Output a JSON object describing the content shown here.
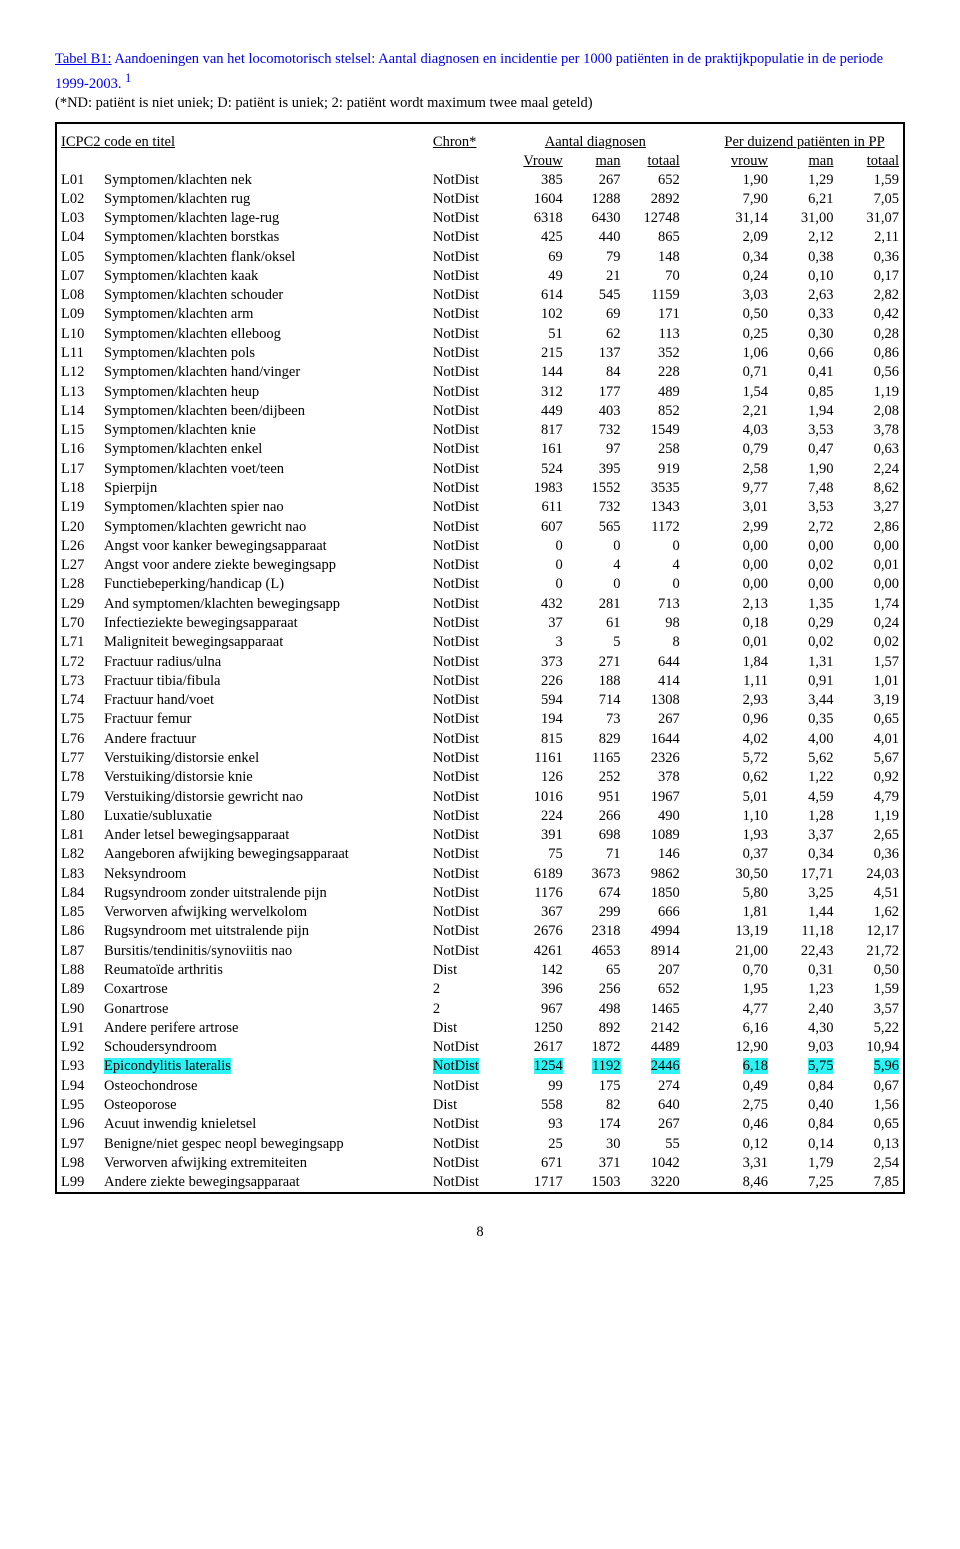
{
  "title_prefix": "Tabel B1:",
  "title_rest": " Aandoeningen van het locomotorisch stelsel: Aantal diagnosen en incidentie per 1000 patiënten in de praktijkpopulatie in de periode 1999-2003. ",
  "title_sup": "1",
  "subtitle": "(*ND: patiënt is niet uniek; D: patiënt is uniek; 2: patiënt wordt maximum twee maal geteld)",
  "headers": {
    "col1": "ICPC2 code en titel",
    "chron": "Chron*",
    "diag_group": "Aantal diagnosen",
    "pp_group": "Per duizend patiënten in PP",
    "vrouw_cap": "Vrouw",
    "man": "man",
    "totaal": "totaal",
    "vrouw": "vrouw"
  },
  "page_number": "8",
  "highlight_code": "L93",
  "rows": [
    {
      "code": "L01",
      "name": "Symptomen/klachten nek",
      "chron": "NotDist",
      "v": "385",
      "m": "267",
      "t": "652",
      "rv": "1,90",
      "rm": "1,29",
      "rt": "1,59"
    },
    {
      "code": "L02",
      "name": "Symptomen/klachten rug",
      "chron": "NotDist",
      "v": "1604",
      "m": "1288",
      "t": "2892",
      "rv": "7,90",
      "rm": "6,21",
      "rt": "7,05"
    },
    {
      "code": "L03",
      "name": "Symptomen/klachten lage-rug",
      "chron": "NotDist",
      "v": "6318",
      "m": "6430",
      "t": "12748",
      "rv": "31,14",
      "rm": "31,00",
      "rt": "31,07"
    },
    {
      "code": "L04",
      "name": "Symptomen/klachten borstkas",
      "chron": "NotDist",
      "v": "425",
      "m": "440",
      "t": "865",
      "rv": "2,09",
      "rm": "2,12",
      "rt": "2,11"
    },
    {
      "code": "L05",
      "name": "Symptomen/klachten flank/oksel",
      "chron": "NotDist",
      "v": "69",
      "m": "79",
      "t": "148",
      "rv": "0,34",
      "rm": "0,38",
      "rt": "0,36"
    },
    {
      "code": "L07",
      "name": "Symptomen/klachten kaak",
      "chron": "NotDist",
      "v": "49",
      "m": "21",
      "t": "70",
      "rv": "0,24",
      "rm": "0,10",
      "rt": "0,17"
    },
    {
      "code": "L08",
      "name": "Symptomen/klachten schouder",
      "chron": "NotDist",
      "v": "614",
      "m": "545",
      "t": "1159",
      "rv": "3,03",
      "rm": "2,63",
      "rt": "2,82"
    },
    {
      "code": "L09",
      "name": "Symptomen/klachten arm",
      "chron": "NotDist",
      "v": "102",
      "m": "69",
      "t": "171",
      "rv": "0,50",
      "rm": "0,33",
      "rt": "0,42"
    },
    {
      "code": "L10",
      "name": "Symptomen/klachten elleboog",
      "chron": "NotDist",
      "v": "51",
      "m": "62",
      "t": "113",
      "rv": "0,25",
      "rm": "0,30",
      "rt": "0,28"
    },
    {
      "code": "L11",
      "name": "Symptomen/klachten pols",
      "chron": "NotDist",
      "v": "215",
      "m": "137",
      "t": "352",
      "rv": "1,06",
      "rm": "0,66",
      "rt": "0,86"
    },
    {
      "code": "L12",
      "name": "Symptomen/klachten hand/vinger",
      "chron": "NotDist",
      "v": "144",
      "m": "84",
      "t": "228",
      "rv": "0,71",
      "rm": "0,41",
      "rt": "0,56"
    },
    {
      "code": "L13",
      "name": "Symptomen/klachten heup",
      "chron": "NotDist",
      "v": "312",
      "m": "177",
      "t": "489",
      "rv": "1,54",
      "rm": "0,85",
      "rt": "1,19"
    },
    {
      "code": "L14",
      "name": "Symptomen/klachten been/dijbeen",
      "chron": "NotDist",
      "v": "449",
      "m": "403",
      "t": "852",
      "rv": "2,21",
      "rm": "1,94",
      "rt": "2,08"
    },
    {
      "code": "L15",
      "name": "Symptomen/klachten knie",
      "chron": "NotDist",
      "v": "817",
      "m": "732",
      "t": "1549",
      "rv": "4,03",
      "rm": "3,53",
      "rt": "3,78"
    },
    {
      "code": "L16",
      "name": "Symptomen/klachten enkel",
      "chron": "NotDist",
      "v": "161",
      "m": "97",
      "t": "258",
      "rv": "0,79",
      "rm": "0,47",
      "rt": "0,63"
    },
    {
      "code": "L17",
      "name": "Symptomen/klachten voet/teen",
      "chron": "NotDist",
      "v": "524",
      "m": "395",
      "t": "919",
      "rv": "2,58",
      "rm": "1,90",
      "rt": "2,24"
    },
    {
      "code": "L18",
      "name": "Spierpijn",
      "chron": "NotDist",
      "v": "1983",
      "m": "1552",
      "t": "3535",
      "rv": "9,77",
      "rm": "7,48",
      "rt": "8,62"
    },
    {
      "code": "L19",
      "name": "Symptomen/klachten spier nao",
      "chron": "NotDist",
      "v": "611",
      "m": "732",
      "t": "1343",
      "rv": "3,01",
      "rm": "3,53",
      "rt": "3,27"
    },
    {
      "code": "L20",
      "name": "Symptomen/klachten gewricht nao",
      "chron": "NotDist",
      "v": "607",
      "m": "565",
      "t": "1172",
      "rv": "2,99",
      "rm": "2,72",
      "rt": "2,86"
    },
    {
      "code": "L26",
      "name": "Angst voor kanker bewegingsapparaat",
      "chron": "NotDist",
      "v": "0",
      "m": "0",
      "t": "0",
      "rv": "0,00",
      "rm": "0,00",
      "rt": "0,00"
    },
    {
      "code": "L27",
      "name": "Angst voor andere ziekte bewegingsapp",
      "chron": "NotDist",
      "v": "0",
      "m": "4",
      "t": "4",
      "rv": "0,00",
      "rm": "0,02",
      "rt": "0,01"
    },
    {
      "code": "L28",
      "name": "Functiebeperking/handicap (L)",
      "chron": "NotDist",
      "v": "0",
      "m": "0",
      "t": "0",
      "rv": "0,00",
      "rm": "0,00",
      "rt": "0,00"
    },
    {
      "code": "L29",
      "name": "And symptomen/klachten bewegingsapp",
      "chron": "NotDist",
      "v": "432",
      "m": "281",
      "t": "713",
      "rv": "2,13",
      "rm": "1,35",
      "rt": "1,74"
    },
    {
      "code": "L70",
      "name": "Infectieziekte bewegingsapparaat",
      "chron": "NotDist",
      "v": "37",
      "m": "61",
      "t": "98",
      "rv": "0,18",
      "rm": "0,29",
      "rt": "0,24"
    },
    {
      "code": "L71",
      "name": "Maligniteit bewegingsapparaat",
      "chron": "NotDist",
      "v": "3",
      "m": "5",
      "t": "8",
      "rv": "0,01",
      "rm": "0,02",
      "rt": "0,02"
    },
    {
      "code": "L72",
      "name": "Fractuur radius/ulna",
      "chron": "NotDist",
      "v": "373",
      "m": "271",
      "t": "644",
      "rv": "1,84",
      "rm": "1,31",
      "rt": "1,57"
    },
    {
      "code": "L73",
      "name": "Fractuur tibia/fibula",
      "chron": "NotDist",
      "v": "226",
      "m": "188",
      "t": "414",
      "rv": "1,11",
      "rm": "0,91",
      "rt": "1,01"
    },
    {
      "code": "L74",
      "name": "Fractuur hand/voet",
      "chron": "NotDist",
      "v": "594",
      "m": "714",
      "t": "1308",
      "rv": "2,93",
      "rm": "3,44",
      "rt": "3,19"
    },
    {
      "code": "L75",
      "name": "Fractuur femur",
      "chron": "NotDist",
      "v": "194",
      "m": "73",
      "t": "267",
      "rv": "0,96",
      "rm": "0,35",
      "rt": "0,65"
    },
    {
      "code": "L76",
      "name": "Andere fractuur",
      "chron": "NotDist",
      "v": "815",
      "m": "829",
      "t": "1644",
      "rv": "4,02",
      "rm": "4,00",
      "rt": "4,01"
    },
    {
      "code": "L77",
      "name": "Verstuiking/distorsie enkel",
      "chron": "NotDist",
      "v": "1161",
      "m": "1165",
      "t": "2326",
      "rv": "5,72",
      "rm": "5,62",
      "rt": "5,67"
    },
    {
      "code": "L78",
      "name": "Verstuiking/distorsie knie",
      "chron": "NotDist",
      "v": "126",
      "m": "252",
      "t": "378",
      "rv": "0,62",
      "rm": "1,22",
      "rt": "0,92"
    },
    {
      "code": "L79",
      "name": "Verstuiking/distorsie gewricht nao",
      "chron": "NotDist",
      "v": "1016",
      "m": "951",
      "t": "1967",
      "rv": "5,01",
      "rm": "4,59",
      "rt": "4,79"
    },
    {
      "code": "L80",
      "name": "Luxatie/subluxatie",
      "chron": "NotDist",
      "v": "224",
      "m": "266",
      "t": "490",
      "rv": "1,10",
      "rm": "1,28",
      "rt": "1,19"
    },
    {
      "code": "L81",
      "name": "Ander letsel bewegingsapparaat",
      "chron": "NotDist",
      "v": "391",
      "m": "698",
      "t": "1089",
      "rv": "1,93",
      "rm": "3,37",
      "rt": "2,65"
    },
    {
      "code": "L82",
      "name": "Aangeboren afwijking bewegingsapparaat",
      "chron": "NotDist",
      "v": "75",
      "m": "71",
      "t": "146",
      "rv": "0,37",
      "rm": "0,34",
      "rt": "0,36"
    },
    {
      "code": "L83",
      "name": "Neksyndroom",
      "chron": "NotDist",
      "v": "6189",
      "m": "3673",
      "t": "9862",
      "rv": "30,50",
      "rm": "17,71",
      "rt": "24,03"
    },
    {
      "code": "L84",
      "name": "Rugsyndroom zonder uitstralende pijn",
      "chron": "NotDist",
      "v": "1176",
      "m": "674",
      "t": "1850",
      "rv": "5,80",
      "rm": "3,25",
      "rt": "4,51"
    },
    {
      "code": "L85",
      "name": "Verworven afwijking wervelkolom",
      "chron": "NotDist",
      "v": "367",
      "m": "299",
      "t": "666",
      "rv": "1,81",
      "rm": "1,44",
      "rt": "1,62"
    },
    {
      "code": "L86",
      "name": "Rugsyndroom met uitstralende pijn",
      "chron": "NotDist",
      "v": "2676",
      "m": "2318",
      "t": "4994",
      "rv": "13,19",
      "rm": "11,18",
      "rt": "12,17"
    },
    {
      "code": "L87",
      "name": "Bursitis/tendinitis/synoviitis nao",
      "chron": "NotDist",
      "v": "4261",
      "m": "4653",
      "t": "8914",
      "rv": "21,00",
      "rm": "22,43",
      "rt": "21,72"
    },
    {
      "code": "L88",
      "name": "Reumatoïde arthritis",
      "chron": "Dist",
      "v": "142",
      "m": "65",
      "t": "207",
      "rv": "0,70",
      "rm": "0,31",
      "rt": "0,50"
    },
    {
      "code": "L89",
      "name": "Coxartrose",
      "chron": "2",
      "v": "396",
      "m": "256",
      "t": "652",
      "rv": "1,95",
      "rm": "1,23",
      "rt": "1,59"
    },
    {
      "code": "L90",
      "name": "Gonartrose",
      "chron": "2",
      "v": "967",
      "m": "498",
      "t": "1465",
      "rv": "4,77",
      "rm": "2,40",
      "rt": "3,57"
    },
    {
      "code": "L91",
      "name": "Andere perifere artrose",
      "chron": "Dist",
      "v": "1250",
      "m": "892",
      "t": "2142",
      "rv": "6,16",
      "rm": "4,30",
      "rt": "5,22"
    },
    {
      "code": "L92",
      "name": "Schoudersyndroom",
      "chron": "NotDist",
      "v": "2617",
      "m": "1872",
      "t": "4489",
      "rv": "12,90",
      "rm": "9,03",
      "rt": "10,94"
    },
    {
      "code": "L93",
      "name": "Epicondylitis lateralis",
      "chron": "NotDist",
      "v": "1254",
      "m": "1192",
      "t": "2446",
      "rv": "6,18",
      "rm": "5,75",
      "rt": "5,96"
    },
    {
      "code": "L94",
      "name": "Osteochondrose",
      "chron": "NotDist",
      "v": "99",
      "m": "175",
      "t": "274",
      "rv": "0,49",
      "rm": "0,84",
      "rt": "0,67"
    },
    {
      "code": "L95",
      "name": "Osteoporose",
      "chron": "Dist",
      "v": "558",
      "m": "82",
      "t": "640",
      "rv": "2,75",
      "rm": "0,40",
      "rt": "1,56"
    },
    {
      "code": "L96",
      "name": "Acuut inwendig knieletsel",
      "chron": "NotDist",
      "v": "93",
      "m": "174",
      "t": "267",
      "rv": "0,46",
      "rm": "0,84",
      "rt": "0,65"
    },
    {
      "code": "L97",
      "name": "Benigne/niet gespec neopl bewegingsapp",
      "chron": "NotDist",
      "v": "25",
      "m": "30",
      "t": "55",
      "rv": "0,12",
      "rm": "0,14",
      "rt": "0,13"
    },
    {
      "code": "L98",
      "name": "Verworven afwijking extremiteiten",
      "chron": "NotDist",
      "v": "671",
      "m": "371",
      "t": "1042",
      "rv": "3,31",
      "rm": "1,79",
      "rt": "2,54"
    },
    {
      "code": "L99",
      "name": "Andere ziekte bewegingsapparaat",
      "chron": "NotDist",
      "v": "1717",
      "m": "1503",
      "t": "3220",
      "rv": "8,46",
      "rm": "7,25",
      "rt": "7,85"
    }
  ]
}
